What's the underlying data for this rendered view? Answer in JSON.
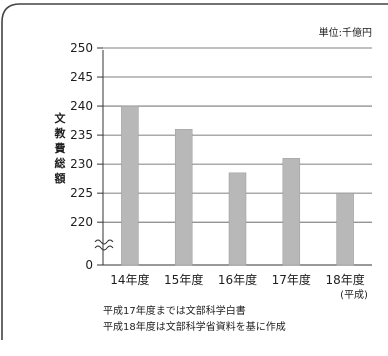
{
  "chart_data": {
    "type": "bar",
    "unit_label": "単位:千億円",
    "ylabel": "文教費総額",
    "categories": [
      "14年度",
      "15年度",
      "16年度",
      "17年度",
      "18年度"
    ],
    "x_note": "(平成)",
    "values": [
      240,
      236,
      228.5,
      231,
      225
    ],
    "y_ticks": [
      250,
      245,
      240,
      235,
      230,
      225,
      220
    ],
    "y_zero_tick": "0",
    "ylim": [
      219,
      250
    ],
    "axis_break": true,
    "bar_color": "#b8b8b8",
    "grid": true,
    "notes": [
      "平成17年度までは文部科学白書",
      "平成18年度は文部科学省資料を基に作成"
    ]
  }
}
